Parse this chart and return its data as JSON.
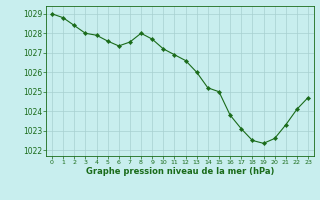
{
  "x": [
    0,
    1,
    2,
    3,
    4,
    5,
    6,
    7,
    8,
    9,
    10,
    11,
    12,
    13,
    14,
    15,
    16,
    17,
    18,
    19,
    20,
    21,
    22,
    23
  ],
  "y": [
    1029.0,
    1028.8,
    1028.4,
    1028.0,
    1027.9,
    1027.6,
    1027.35,
    1027.55,
    1028.0,
    1027.7,
    1027.2,
    1026.9,
    1026.6,
    1026.0,
    1025.2,
    1025.0,
    1023.8,
    1023.1,
    1022.5,
    1022.35,
    1022.6,
    1023.3,
    1024.1,
    1024.7
  ],
  "line_color": "#1a6b1a",
  "marker_color": "#1a6b1a",
  "bg_color": "#c8eeee",
  "grid_color": "#a8d0d0",
  "xlabel": "Graphe pression niveau de la mer (hPa)",
  "xlabel_color": "#1a6b1a",
  "ylabel_ticks": [
    1022,
    1023,
    1024,
    1025,
    1026,
    1027,
    1028,
    1029
  ],
  "xlim": [
    -0.5,
    23.5
  ],
  "ylim": [
    1021.7,
    1029.4
  ],
  "xtick_labels": [
    "0",
    "1",
    "2",
    "3",
    "4",
    "5",
    "6",
    "7",
    "8",
    "9",
    "10",
    "11",
    "12",
    "13",
    "14",
    "15",
    "16",
    "17",
    "18",
    "19",
    "20",
    "21",
    "22",
    "23"
  ]
}
